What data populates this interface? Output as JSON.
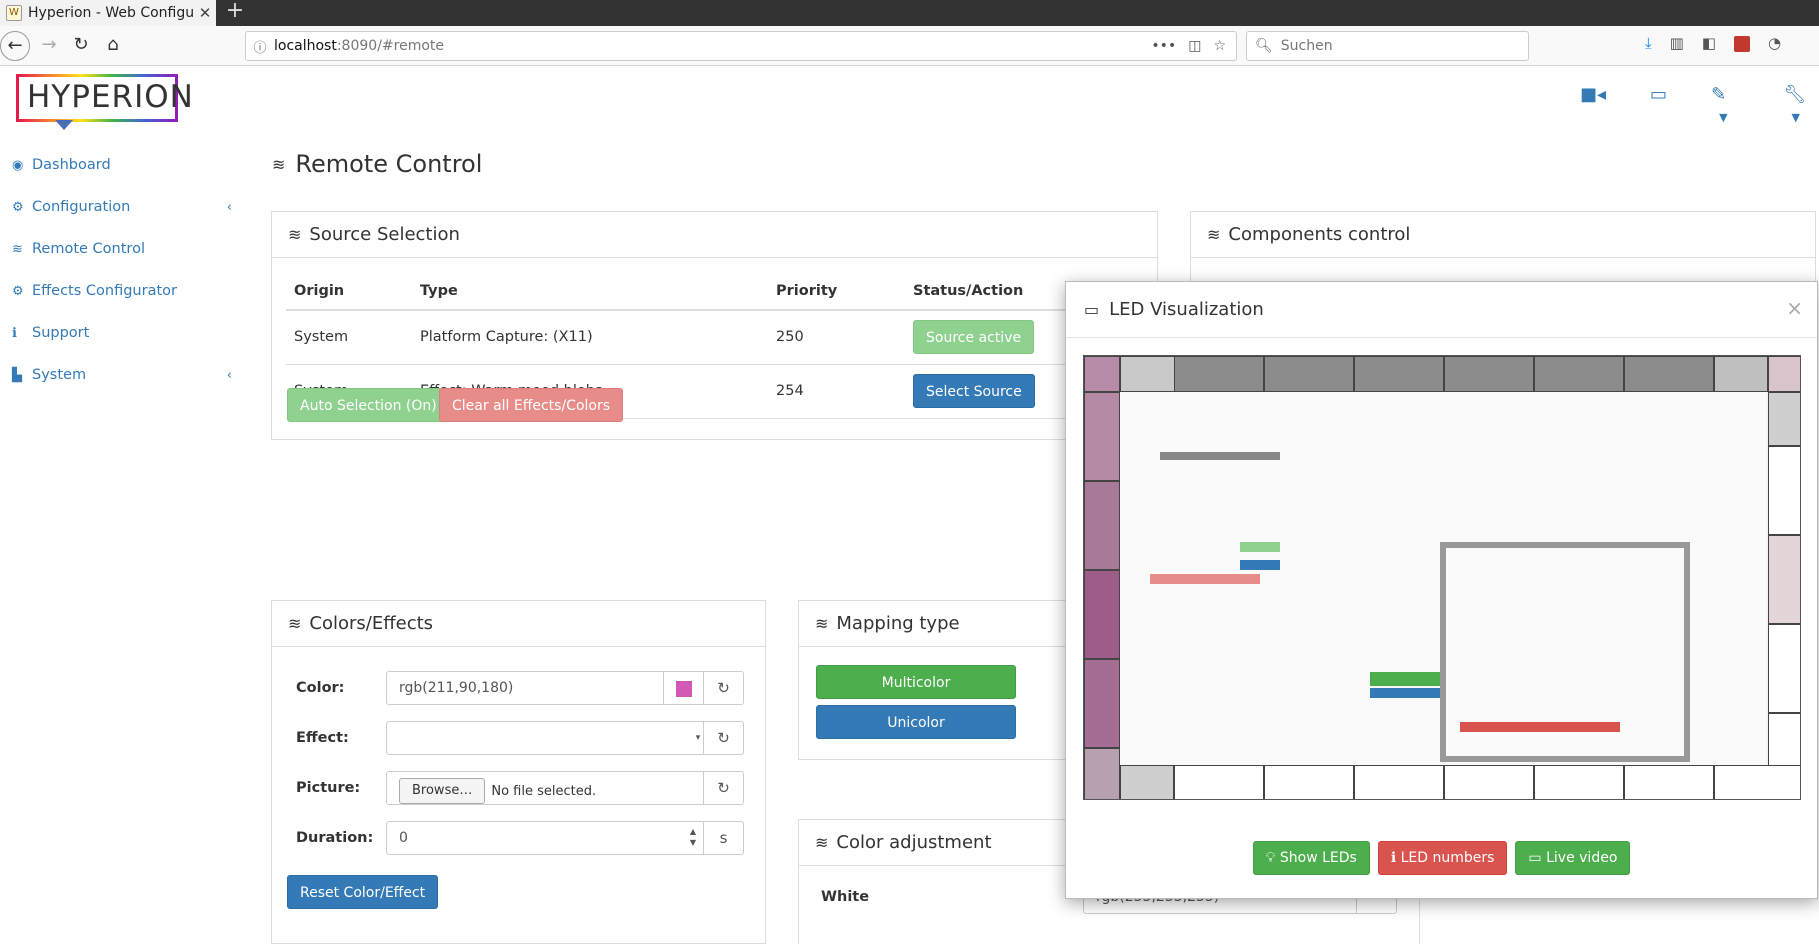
{
  "browser": {
    "tab_title": "Hyperion - Web Configu",
    "new_tab": "+",
    "url_host": "localhost",
    "url_path": ":8090/#remote",
    "search_placeholder": "Suchen"
  },
  "app": {
    "logo": "HYPERION"
  },
  "sidebar": {
    "items": [
      {
        "label": "Dashboard",
        "icon": "dashboard-icon"
      },
      {
        "label": "Configuration",
        "icon": "gear-icon"
      },
      {
        "label": "Remote Control",
        "icon": "wifi-icon"
      },
      {
        "label": "Effects Configurator",
        "icon": "gears-icon"
      },
      {
        "label": "Support",
        "icon": "info-icon"
      },
      {
        "label": "System",
        "icon": "chart-icon"
      }
    ]
  },
  "main": {
    "title": "Remote Control",
    "source_selection": {
      "heading": "Source Selection",
      "columns": [
        "Origin",
        "Type",
        "Priority",
        "Status/Action"
      ],
      "rows": [
        {
          "origin": "System",
          "type": "Platform Capture: (X11)",
          "priority": "250",
          "action": "Source active"
        },
        {
          "origin": "System",
          "type": "Effect: Warm mood blobs",
          "priority": "254",
          "action": "Select Source"
        }
      ],
      "auto_selection": "Auto Selection (On)",
      "clear_all": "Clear all Effects/Colors"
    },
    "components": {
      "heading": "Components control"
    },
    "colors_effects": {
      "heading": "Colors/Effects",
      "color_label": "Color:",
      "color_value": "rgb(211,90,180)",
      "effect_label": "Effect:",
      "effect_value": "",
      "picture_label": "Picture:",
      "browse": "Browse…",
      "no_file": "No file selected.",
      "duration_label": "Duration:",
      "duration_value": "0",
      "duration_unit": "s",
      "reset": "Reset Color/Effect"
    },
    "mapping": {
      "heading": "Mapping type",
      "multicolor": "Multicolor",
      "unicolor": "Unicolor"
    },
    "color_adjustment": {
      "heading": "Color adjustment",
      "white_label": "White",
      "white_value": "rgb(255,255,255)"
    }
  },
  "led_modal": {
    "title": "LED Visualization",
    "close": "×",
    "show_leds": "Show LEDs",
    "led_numbers": "LED numbers",
    "live_video": "Live video"
  },
  "colors": {
    "accent": "#337ab7",
    "success": "#4cae4c",
    "danger": "#d9534f",
    "picked": "#d35ab4"
  }
}
